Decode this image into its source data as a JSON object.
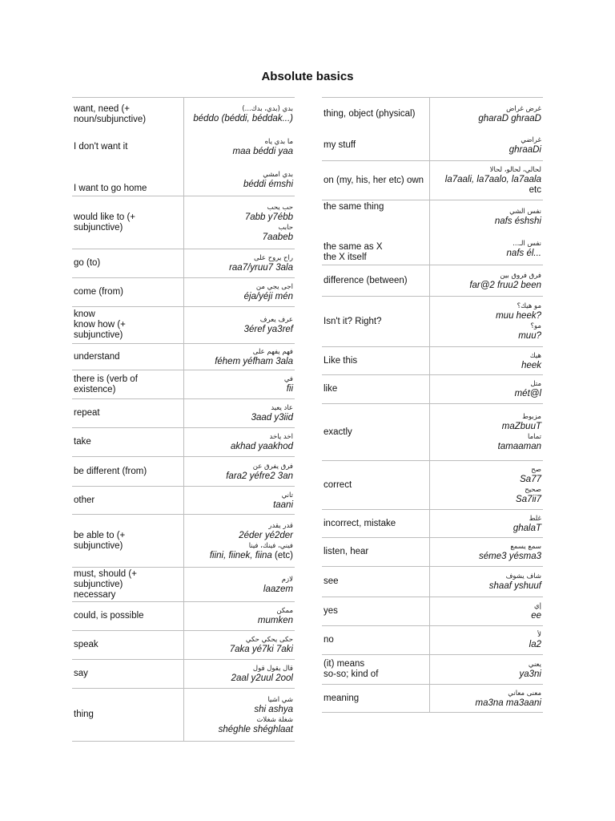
{
  "title": "Absolute basics",
  "left": [
    [
      {
        "en": "want, need (+\nnoun/subjunctive)",
        "pairs": [
          {
            "ar": "بدي (بدي، بدك...)",
            "tr": "béddo (béddi, béddak...)"
          }
        ]
      },
      {
        "en": "I don't want it",
        "pairs": [
          {
            "ar": "ما بدي ياه",
            "tr": "maa béddi yaa"
          }
        ]
      },
      {
        "en": "I want to go home",
        "pairs": [
          {
            "ar": "بدي امشي",
            "tr": "béddi émshi"
          }
        ]
      }
    ],
    [
      {
        "en": "would like to (+\nsubjunctive)",
        "pairs": [
          {
            "ar": "حب يحب",
            "tr": "7abb y7ébb"
          },
          {
            "ar": "حابب",
            "tr": "7aabeb"
          }
        ]
      }
    ],
    [
      {
        "en": "go (to)",
        "pairs": [
          {
            "ar": "راح يروح على",
            "tr": "raa7/yruu7 3ala"
          }
        ]
      }
    ],
    [
      {
        "en": "come (from)",
        "pairs": [
          {
            "ar": "اجى يجي من",
            "tr": "éja/yéji mén"
          }
        ]
      }
    ],
    [
      {
        "en": "know\nknow how (+\nsubjunctive)",
        "pairs": [
          {
            "ar": "عرف يعرف",
            "tr": "3éref ya3ref"
          }
        ]
      }
    ],
    [
      {
        "en": "understand",
        "pairs": [
          {
            "ar": "فهم يفهم على",
            "tr": "féhem yéfham 3ala"
          }
        ]
      }
    ],
    [
      {
        "en": "there is (verb of\nexistence)",
        "pairs": [
          {
            "ar": "في",
            "tr": "fii"
          }
        ]
      }
    ],
    [
      {
        "en": "repeat",
        "pairs": [
          {
            "ar": "عاد يعيد",
            "tr": "3aad y3iid"
          }
        ]
      }
    ],
    [
      {
        "en": "take",
        "pairs": [
          {
            "ar": "اخد ياخد",
            "tr": "akhad yaakhod"
          }
        ]
      }
    ],
    [
      {
        "en": "be different (from)",
        "pairs": [
          {
            "ar": "فرق يفرق عن",
            "tr": "fara2 yéfre2 3an"
          }
        ]
      }
    ],
    [
      {
        "en": "other",
        "pairs": [
          {
            "ar": "تاني",
            "tr": "taani"
          }
        ]
      }
    ],
    [
      {
        "en": "be able to (+\nsubjunctive)",
        "pairs": [
          {
            "ar": "قدر يقدر",
            "tr": "2éder yé2der"
          },
          {
            "ar": "فيني، فينك، فينا",
            "tr": "fiini, fiinek, fiina",
            "suffix": " (etc)"
          }
        ]
      }
    ],
    [
      {
        "en": "must, should (+\nsubjunctive)\nnecessary",
        "pairs": [
          {
            "ar": "لازم",
            "tr": "laazem"
          }
        ]
      }
    ],
    [
      {
        "en": "could, is possible",
        "pairs": [
          {
            "ar": "ممكن",
            "tr": "mumken"
          }
        ]
      }
    ],
    [
      {
        "en": "speak",
        "pairs": [
          {
            "ar": "حكى يحكي حكي",
            "tr": "7aka yé7ki 7aki"
          }
        ]
      }
    ],
    [
      {
        "en": "say",
        "pairs": [
          {
            "ar": "قال يقول قول",
            "tr": "2aal y2uul 2ool"
          }
        ]
      }
    ],
    [
      {
        "en": "thing",
        "pairs": [
          {
            "ar": "شي اشيا",
            "tr": "shi ashya"
          },
          {
            "ar": "شغلة شغلات",
            "tr": "shéghle shéghlaat"
          }
        ]
      }
    ]
  ],
  "right": [
    [
      {
        "en": "thing, object (physical)",
        "pairs": [
          {
            "ar": "غرض غراض",
            "tr": "gharaD ghraaD"
          }
        ]
      },
      {
        "en": "my stuff",
        "pairs": [
          {
            "ar": "غراضي",
            "tr": "ghraaDi"
          }
        ]
      }
    ],
    [
      {
        "en": "on (my, his, her etc) own",
        "pairs": [
          {
            "ar": "لحالي، لحالو، لحالا",
            "tr": "la7aali, la7aalo, la7aala",
            "suffix": "\netc"
          }
        ]
      }
    ],
    [
      {
        "en": "the same thing",
        "pairs": [
          {
            "ar": "نفس الشي",
            "tr": "nafs éshshi"
          }
        ]
      },
      {
        "en": "the same as X\nthe X itself",
        "pairs": [
          {
            "ar": "نفس الـ...",
            "tr": "nafs él..."
          }
        ]
      }
    ],
    [
      {
        "en": "difference (between)",
        "pairs": [
          {
            "ar": "فرق فروق بين",
            "tr": "far@2 fruu2 been"
          }
        ]
      }
    ],
    [
      {
        "en": "Isn't it? Right?",
        "pairs": [
          {
            "ar": "مو هيك؟",
            "tr": "muu heek?"
          },
          {
            "ar": "مو؟",
            "tr": "muu?"
          }
        ]
      }
    ],
    [
      {
        "en": "Like this",
        "pairs": [
          {
            "ar": "هيك",
            "tr": "heek"
          }
        ]
      }
    ],
    [
      {
        "en": "like",
        "pairs": [
          {
            "ar": "متل",
            "tr": "mét@l"
          }
        ]
      }
    ],
    [
      {
        "en": "exactly",
        "pairs": [
          {
            "ar": "مزبوط",
            "tr": "maZbuuT"
          },
          {
            "ar": "تماما",
            "tr": "tamaaman"
          }
        ]
      }
    ],
    [
      {
        "en": "correct",
        "pairs": [
          {
            "ar": "صح",
            "tr": "Sa77"
          },
          {
            "ar": "صحيح",
            "tr": "Sa7ii7"
          }
        ]
      }
    ],
    [
      {
        "en": "incorrect, mistake",
        "pairs": [
          {
            "ar": "غلط",
            "tr": "ghalaT"
          }
        ]
      }
    ],
    [
      {
        "en": "listen, hear",
        "pairs": [
          {
            "ar": "سمع يسمع",
            "tr": "séme3 yésma3"
          }
        ]
      }
    ],
    [
      {
        "en": "see",
        "pairs": [
          {
            "ar": "شاف يشوف",
            "tr": "shaaf yshuuf"
          }
        ]
      }
    ],
    [
      {
        "en": "yes",
        "pairs": [
          {
            "ar": "إي",
            "tr": "ee"
          }
        ]
      }
    ],
    [
      {
        "en": "no",
        "pairs": [
          {
            "ar": "لأ",
            "tr": "la2"
          }
        ]
      }
    ],
    [
      {
        "en": "(it) means\nso-so; kind of",
        "pairs": [
          {
            "ar": "يعني",
            "tr": "ya3ni"
          }
        ]
      }
    ],
    [
      {
        "en": "meaning",
        "pairs": [
          {
            "ar": "معنى معاني",
            "tr": "ma3na ma3aani"
          }
        ]
      }
    ]
  ]
}
